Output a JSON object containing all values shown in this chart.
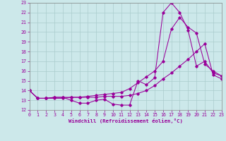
{
  "bg_color": "#cce8ea",
  "grid_color": "#aacccc",
  "line_color": "#990099",
  "xlim": [
    0,
    23
  ],
  "ylim": [
    12,
    23
  ],
  "xticks": [
    0,
    1,
    2,
    3,
    4,
    5,
    6,
    7,
    8,
    9,
    10,
    11,
    12,
    13,
    14,
    15,
    16,
    17,
    18,
    19,
    20,
    21,
    22,
    23
  ],
  "yticks": [
    12,
    13,
    14,
    15,
    16,
    17,
    18,
    19,
    20,
    21,
    22,
    23
  ],
  "xlabel": "Windchill (Refroidissement éolien,°C)",
  "line1_x": [
    0,
    1,
    2,
    3,
    4,
    5,
    6,
    7,
    8,
    9,
    10,
    11,
    12,
    13,
    14,
    15,
    16,
    17,
    18,
    19,
    20,
    21,
    22,
    23
  ],
  "line1_y": [
    14.0,
    13.2,
    13.2,
    13.3,
    13.3,
    13.0,
    12.7,
    12.7,
    13.0,
    13.1,
    12.6,
    12.5,
    12.5,
    15.0,
    14.6,
    15.3,
    22.0,
    23.0,
    22.0,
    20.2,
    16.5,
    17.0,
    15.8,
    15.5
  ],
  "line2_x": [
    0,
    1,
    2,
    3,
    4,
    5,
    6,
    7,
    8,
    9,
    10,
    11,
    12,
    13,
    14,
    15,
    16,
    17,
    18,
    19,
    20,
    21,
    22,
    23
  ],
  "line2_y": [
    14.0,
    13.2,
    13.2,
    13.3,
    13.3,
    13.3,
    13.3,
    13.4,
    13.5,
    13.6,
    13.7,
    13.8,
    14.2,
    14.8,
    15.4,
    16.0,
    17.0,
    20.3,
    21.5,
    20.5,
    19.9,
    16.7,
    16.0,
    15.5
  ],
  "line3_x": [
    0,
    1,
    2,
    3,
    4,
    5,
    6,
    7,
    8,
    9,
    10,
    11,
    12,
    13,
    14,
    15,
    16,
    17,
    18,
    19,
    20,
    21,
    22,
    23
  ],
  "line3_y": [
    14.0,
    13.2,
    13.2,
    13.2,
    13.2,
    13.3,
    13.3,
    13.3,
    13.3,
    13.4,
    13.4,
    13.4,
    13.5,
    13.7,
    14.0,
    14.5,
    15.2,
    15.8,
    16.5,
    17.2,
    18.0,
    18.8,
    15.6,
    15.2
  ]
}
